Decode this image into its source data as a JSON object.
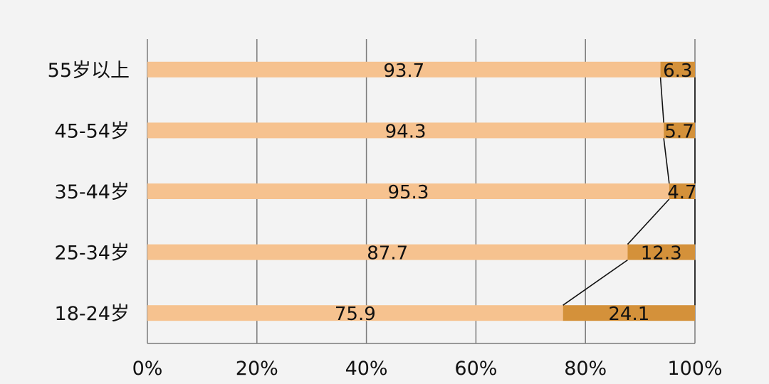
{
  "colors": {
    "background": "#f3f3f3",
    "segment_primary": "#f6c28f",
    "segment_secondary": "#d4913a",
    "grid": "#7a7a7a",
    "connector": "#111111"
  },
  "chart_data": {
    "type": "bar",
    "orientation": "horizontal",
    "stacked": true,
    "percent": true,
    "categories": [
      "18-24岁",
      "25-34岁",
      "35-44岁",
      "45-54岁",
      "55岁以上"
    ],
    "series": [
      {
        "values": [
          75.9,
          87.7,
          95.3,
          94.3,
          93.7
        ],
        "labels": [
          "75.9",
          "87.7",
          "95.3",
          "94.3",
          "93.7"
        ]
      },
      {
        "values": [
          24.1,
          12.3,
          4.7,
          5.7,
          6.3
        ],
        "labels": [
          "24.1",
          "12.3",
          "4.7",
          "5.7",
          "6.3"
        ]
      }
    ],
    "x_ticks": [
      "0%",
      "20%",
      "40%",
      "60%",
      "80%",
      "100%"
    ],
    "xlim": [
      0,
      100
    ],
    "grid": true,
    "series_lines": true,
    "legend": "none"
  }
}
